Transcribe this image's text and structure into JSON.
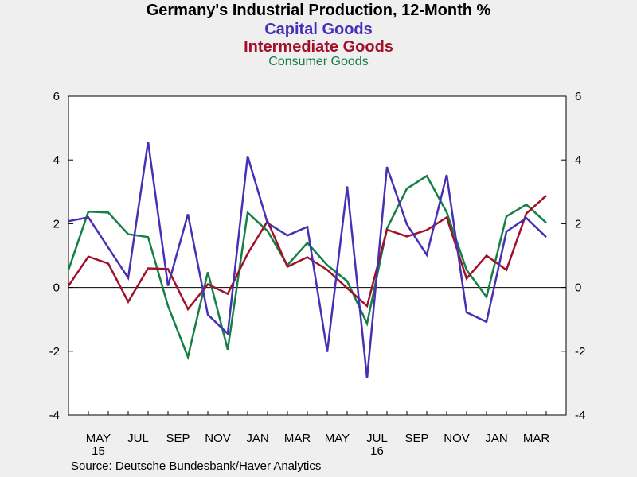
{
  "chart_data": {
    "type": "line",
    "title": "Germany's Industrial Production, 12-Month %",
    "subtitles": [
      {
        "text": "Capital Goods",
        "color": "#4a2fb5"
      },
      {
        "text": "Intermediate Goods",
        "color": "#a0102a"
      },
      {
        "text": "Consumer Goods",
        "color": "#138045"
      }
    ],
    "x": [
      "2015-04",
      "2015-05",
      "2015-06",
      "2015-07",
      "2015-08",
      "2015-09",
      "2015-10",
      "2015-11",
      "2015-12",
      "2016-01",
      "2016-02",
      "2016-03",
      "2016-04",
      "2016-05",
      "2016-06",
      "2016-07",
      "2016-08",
      "2016-09",
      "2016-10",
      "2016-11",
      "2016-12",
      "2017-01",
      "2017-02",
      "2017-03",
      "2017-04"
    ],
    "x_tick_labels": [
      {
        "x": "2015-05",
        "label": "MAY",
        "sub": "15"
      },
      {
        "x": "2015-07",
        "label": "JUL",
        "sub": ""
      },
      {
        "x": "2015-09",
        "label": "SEP",
        "sub": ""
      },
      {
        "x": "2015-11",
        "label": "NOV",
        "sub": ""
      },
      {
        "x": "2016-01",
        "label": "JAN",
        "sub": ""
      },
      {
        "x": "2016-03",
        "label": "MAR",
        "sub": ""
      },
      {
        "x": "2016-05",
        "label": "MAY",
        "sub": ""
      },
      {
        "x": "2016-07",
        "label": "JUL",
        "sub": "16"
      },
      {
        "x": "2016-09",
        "label": "SEP",
        "sub": ""
      },
      {
        "x": "2016-11",
        "label": "NOV",
        "sub": ""
      },
      {
        "x": "2017-01",
        "label": "JAN",
        "sub": ""
      },
      {
        "x": "2017-03",
        "label": "MAR",
        "sub": ""
      }
    ],
    "series": [
      {
        "name": "Capital Goods",
        "color": "#4a2fb5",
        "values": [
          2.08,
          2.2,
          1.25,
          0.3,
          4.57,
          0.05,
          2.3,
          -0.85,
          -1.45,
          4.12,
          2.02,
          1.63,
          1.9,
          -2.02,
          3.17,
          -2.85,
          3.78,
          1.98,
          1.02,
          3.53,
          -0.78,
          -1.08,
          1.75,
          2.18,
          1.58
        ]
      },
      {
        "name": "Intermediate Goods",
        "color": "#a0102a",
        "values": [
          0.05,
          0.97,
          0.75,
          -0.45,
          0.6,
          0.58,
          -0.68,
          0.1,
          -0.2,
          1.06,
          2.08,
          0.65,
          0.95,
          0.55,
          -0.02,
          -0.58,
          1.81,
          1.6,
          1.8,
          2.2,
          0.28,
          1.0,
          0.55,
          2.32,
          2.88
        ]
      },
      {
        "name": "Consumer Goods",
        "color": "#138045",
        "values": [
          0.55,
          2.38,
          2.35,
          1.67,
          1.58,
          -0.58,
          -2.18,
          0.48,
          -1.95,
          2.35,
          1.77,
          0.7,
          1.4,
          0.7,
          0.2,
          -1.13,
          1.85,
          3.1,
          3.5,
          2.36,
          0.55,
          -0.3,
          2.23,
          2.6,
          2.03
        ]
      }
    ],
    "ylim": [
      -4,
      6
    ],
    "yticks": [
      -4,
      -2,
      0,
      2,
      4,
      6
    ],
    "zero_line": true,
    "source": "Source:  Deutsche Bundesbank/Haver Analytics"
  }
}
